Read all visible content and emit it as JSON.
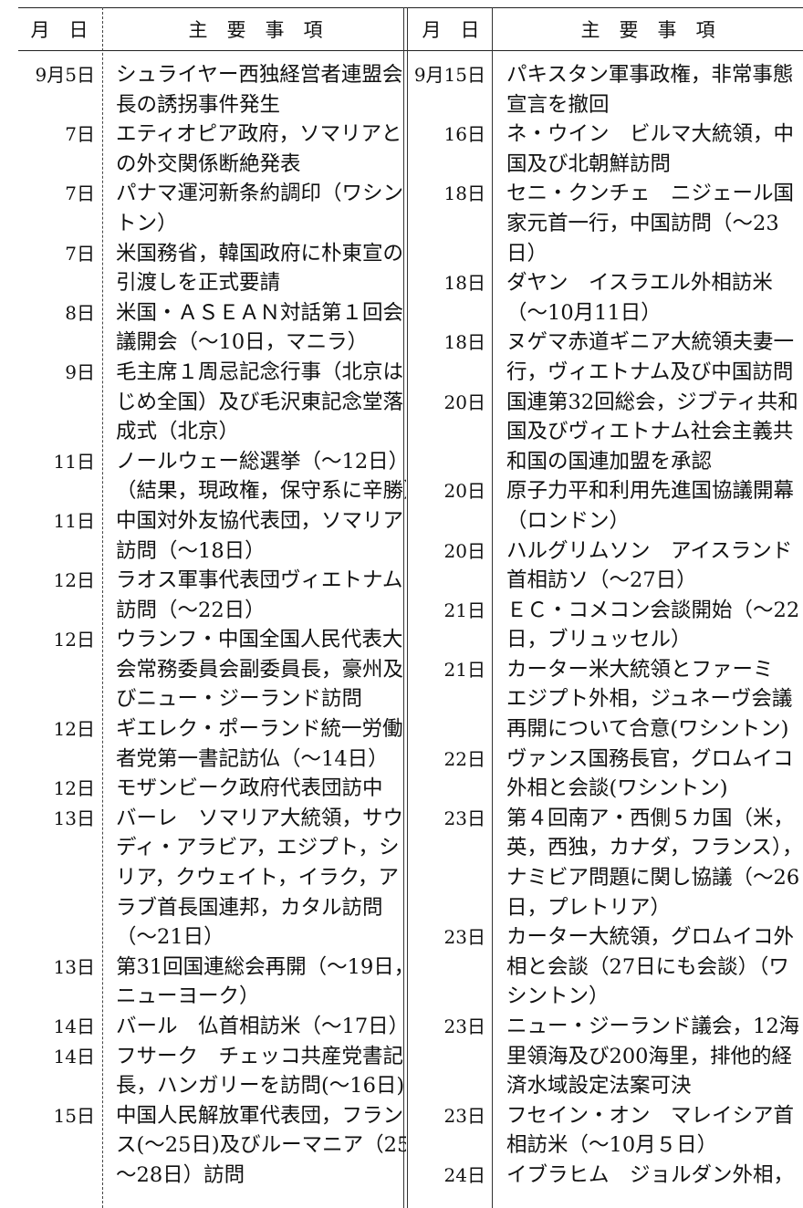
{
  "header": {
    "date_label": "月　日",
    "subject_label": "主　要　事　項"
  },
  "left": [
    {
      "date": "9月5日",
      "lines": [
        "シュライヤー西独経営者連盟会",
        "長の誘拐事件発生"
      ]
    },
    {
      "date": "7日",
      "lines": [
        "エティオピア政府，ソマリアと",
        "の外交関係断絶発表"
      ]
    },
    {
      "date": "7日",
      "lines": [
        "パナマ運河新条約調印（ワシン",
        "トン）"
      ]
    },
    {
      "date": "7日",
      "lines": [
        "米国務省，韓国政府に朴東宣の",
        "引渡しを正式要請"
      ]
    },
    {
      "date": "8日",
      "lines": [
        "米国・ＡＳＥＡＮ対話第１回会",
        "議開会（～10日，マニラ）"
      ]
    },
    {
      "date": "9日",
      "lines": [
        "毛主席１周忌記念行事（北京は",
        "じめ全国）及び毛沢東記念堂落",
        "成式（北京）"
      ]
    },
    {
      "date": "11日",
      "lines": [
        "ノールウェー総選挙（～12日）",
        "（結果，現政権，保守系に辛勝）"
      ]
    },
    {
      "date": "11日",
      "lines": [
        "中国対外友協代表団，ソマリア",
        "訪問（～18日）"
      ]
    },
    {
      "date": "12日",
      "lines": [
        "ラオス軍事代表団ヴィエトナム",
        "訪問（～22日）"
      ]
    },
    {
      "date": "12日",
      "lines": [
        "ウランフ・中国全国人民代表大",
        "会常務委員会副委員長，豪州及",
        "びニュー・ジーランド訪問"
      ]
    },
    {
      "date": "12日",
      "lines": [
        "ギエレク・ポーランド統一労働",
        "者党第一書記訪仏（～14日）"
      ]
    },
    {
      "date": "12日",
      "lines": [
        "モザンビーク政府代表団訪中"
      ]
    },
    {
      "date": "13日",
      "lines": [
        "バーレ　ソマリア大統領，サウ",
        "ディ・アラビア，エジプト，シ",
        "リア，クウェイト，イラク，ア",
        "ラブ首長国連邦，カタル訪問",
        "（～21日）"
      ]
    },
    {
      "date": "13日",
      "lines": [
        "第31回国連総会再開（～19日，",
        "ニューヨーク）"
      ]
    },
    {
      "date": "14日",
      "lines": [
        "バール　仏首相訪米（～17日）"
      ]
    },
    {
      "date": "14日",
      "lines": [
        "フサーク　チェッコ共産党書記",
        "長，ハンガリーを訪問(～16日)"
      ]
    },
    {
      "date": "15日",
      "lines": [
        "中国人民解放軍代表団，フラン",
        "ス(～25日)及びルーマニア（25",
        "～28日）訪問"
      ]
    }
  ],
  "right": [
    {
      "date": "9月15日",
      "lines": [
        "パキスタン軍事政権，非常事態",
        "宣言を撤回"
      ]
    },
    {
      "date": "16日",
      "lines": [
        "ネ・ウイン　ビルマ大統領，中",
        "国及び北朝鮮訪問"
      ]
    },
    {
      "date": "18日",
      "lines": [
        "セニ・クンチェ　ニジェール国",
        "家元首一行，中国訪問（～23",
        "日）"
      ]
    },
    {
      "date": "18日",
      "lines": [
        "ダヤン　イスラエル外相訪米",
        "（～10月11日）"
      ]
    },
    {
      "date": "18日",
      "lines": [
        "ヌゲマ赤道ギニア大統領夫妻一",
        "行，ヴィエトナム及び中国訪問"
      ]
    },
    {
      "date": "20日",
      "lines": [
        "国連第32回総会，ジブティ共和",
        "国及びヴィエトナム社会主義共",
        "和国の国連加盟を承認"
      ]
    },
    {
      "date": "20日",
      "lines": [
        "原子力平和利用先進国協議開幕",
        "（ロンドン）"
      ]
    },
    {
      "date": "20日",
      "lines": [
        "ハルグリムソン　アイスランド",
        "首相訪ソ（～27日）"
      ]
    },
    {
      "date": "21日",
      "lines": [
        "ＥＣ・コメコン会談開始（～22",
        "日，ブリュッセル）"
      ]
    },
    {
      "date": "21日",
      "lines": [
        "カーター米大統領とファーミ",
        "エジプト外相，ジュネーヴ会議",
        "再開について合意(ワシントン)"
      ]
    },
    {
      "date": "22日",
      "lines": [
        "ヴァンス国務長官，グロムイコ",
        "外相と会談(ワシントン)"
      ]
    },
    {
      "date": "23日",
      "lines": [
        "第４回南ア・西側５カ国（米，",
        "英，西独，カナダ，フランス），",
        "ナミビア問題に関し協議（～26",
        "日，プレトリア）"
      ]
    },
    {
      "date": "23日",
      "lines": [
        "カーター大統領，グロムイコ外",
        "相と会談（27日にも会談）（ワ",
        "シントン）"
      ]
    },
    {
      "date": "23日",
      "lines": [
        "ニュー・ジーランド議会，12海",
        "里領海及び200海里，排他的経",
        "済水域設定法案可決"
      ]
    },
    {
      "date": "23日",
      "lines": [
        "フセイン・オン　マレイシア首",
        "相訪米（～10月５日）"
      ]
    },
    {
      "date": "24日",
      "lines": [
        "イブラヒム　ジョルダン外相，"
      ]
    }
  ]
}
